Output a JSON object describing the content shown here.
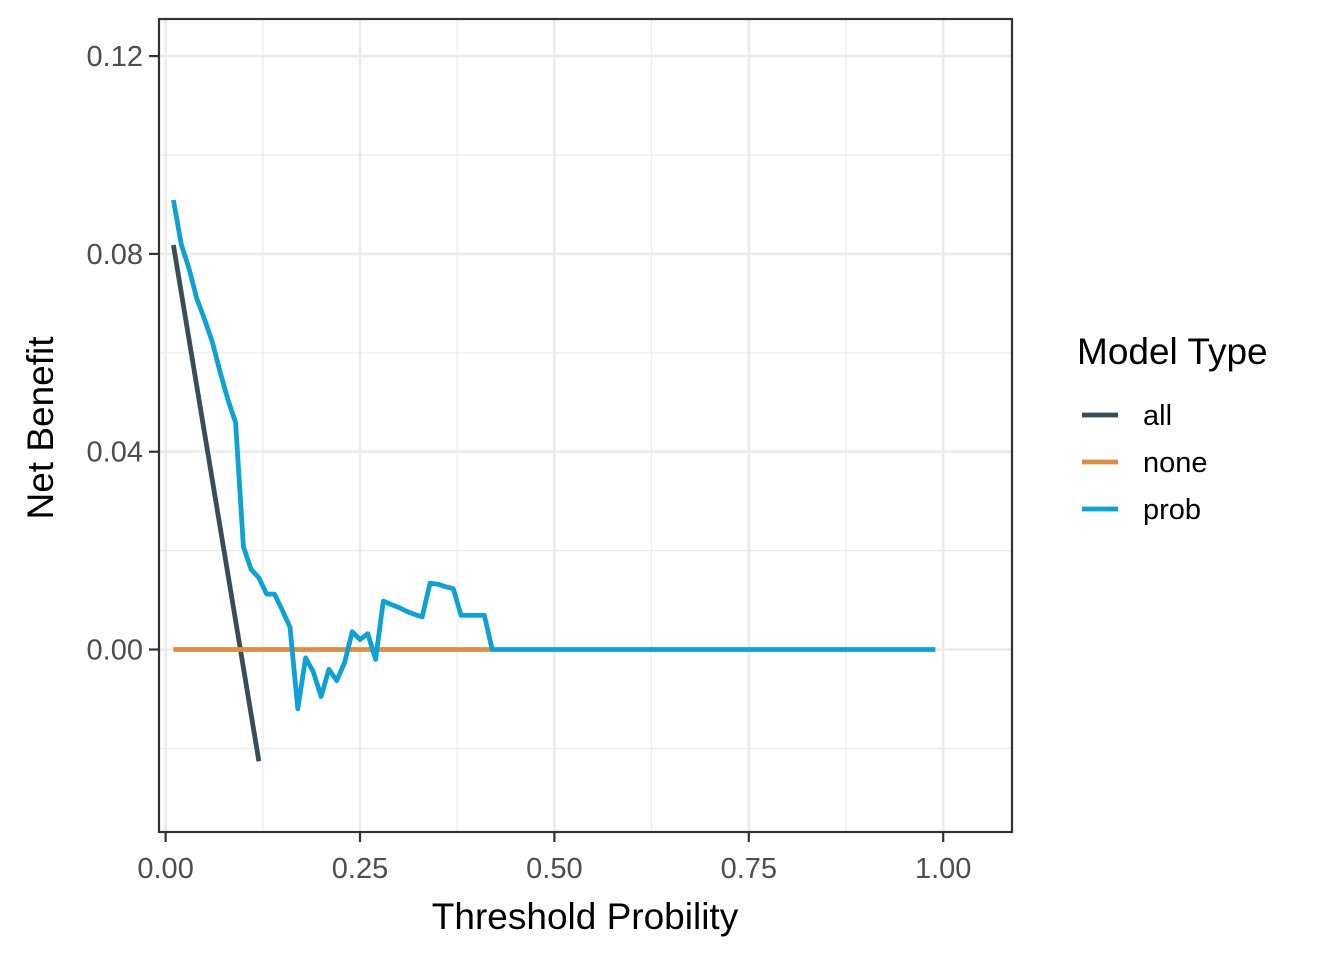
{
  "chart_data": {
    "type": "line",
    "xlabel": "Threshold Probility",
    "ylabel": "Net Benefit",
    "xlim": [
      -0.0085,
      1.0885
    ],
    "ylim": [
      -0.0369,
      0.1275
    ],
    "x_ticks": [
      0.0,
      0.25,
      0.5,
      0.75,
      1.0
    ],
    "x_tick_labels": [
      "0.00",
      "0.25",
      "0.50",
      "0.75",
      "1.00"
    ],
    "x_minor_ticks": [
      0.125,
      0.375,
      0.625,
      0.875
    ],
    "y_ticks": [
      0.0,
      0.04,
      0.08,
      0.12
    ],
    "y_tick_labels": [
      "0.00",
      "0.04",
      "0.08",
      "0.12"
    ],
    "y_minor_ticks": [
      -0.02,
      0.02,
      0.06,
      0.1
    ],
    "grid": true,
    "legend": {
      "title": "Model Type",
      "placement": "right"
    },
    "series": [
      {
        "name": "all",
        "color": "#3a4d56",
        "x": [
          0.01,
          0.12
        ],
        "y": [
          0.0818,
          -0.0226
        ]
      },
      {
        "name": "none",
        "color": "#dd8e44",
        "x": [
          0.01,
          0.42
        ],
        "y": [
          0.0,
          0.0
        ]
      },
      {
        "name": "prob",
        "color": "#0ea2d4",
        "x": [
          0.01,
          0.02,
          0.03,
          0.04,
          0.05,
          0.06,
          0.07,
          0.08,
          0.09,
          0.1,
          0.11,
          0.12,
          0.13,
          0.14,
          0.15,
          0.16,
          0.17,
          0.18,
          0.19,
          0.2,
          0.21,
          0.22,
          0.23,
          0.24,
          0.25,
          0.26,
          0.27,
          0.28,
          0.29,
          0.3,
          0.31,
          0.32,
          0.33,
          0.34,
          0.35,
          0.36,
          0.37,
          0.38,
          0.39,
          0.4,
          0.41,
          0.42,
          0.99
        ],
        "y": [
          0.0909,
          0.082,
          0.0771,
          0.071,
          0.0668,
          0.0622,
          0.0562,
          0.0506,
          0.0459,
          0.0208,
          0.0162,
          0.0145,
          0.0112,
          0.0112,
          0.008,
          0.0045,
          -0.012,
          -0.0017,
          -0.0045,
          -0.0095,
          -0.004,
          -0.0063,
          -0.0027,
          0.0036,
          0.002,
          0.0032,
          -0.002,
          0.0098,
          0.0091,
          0.0085,
          0.0077,
          0.0071,
          0.0066,
          0.0134,
          0.0132,
          0.0127,
          0.0123,
          0.0069,
          0.0069,
          0.0069,
          0.0069,
          0.0,
          0.0
        ]
      }
    ]
  }
}
